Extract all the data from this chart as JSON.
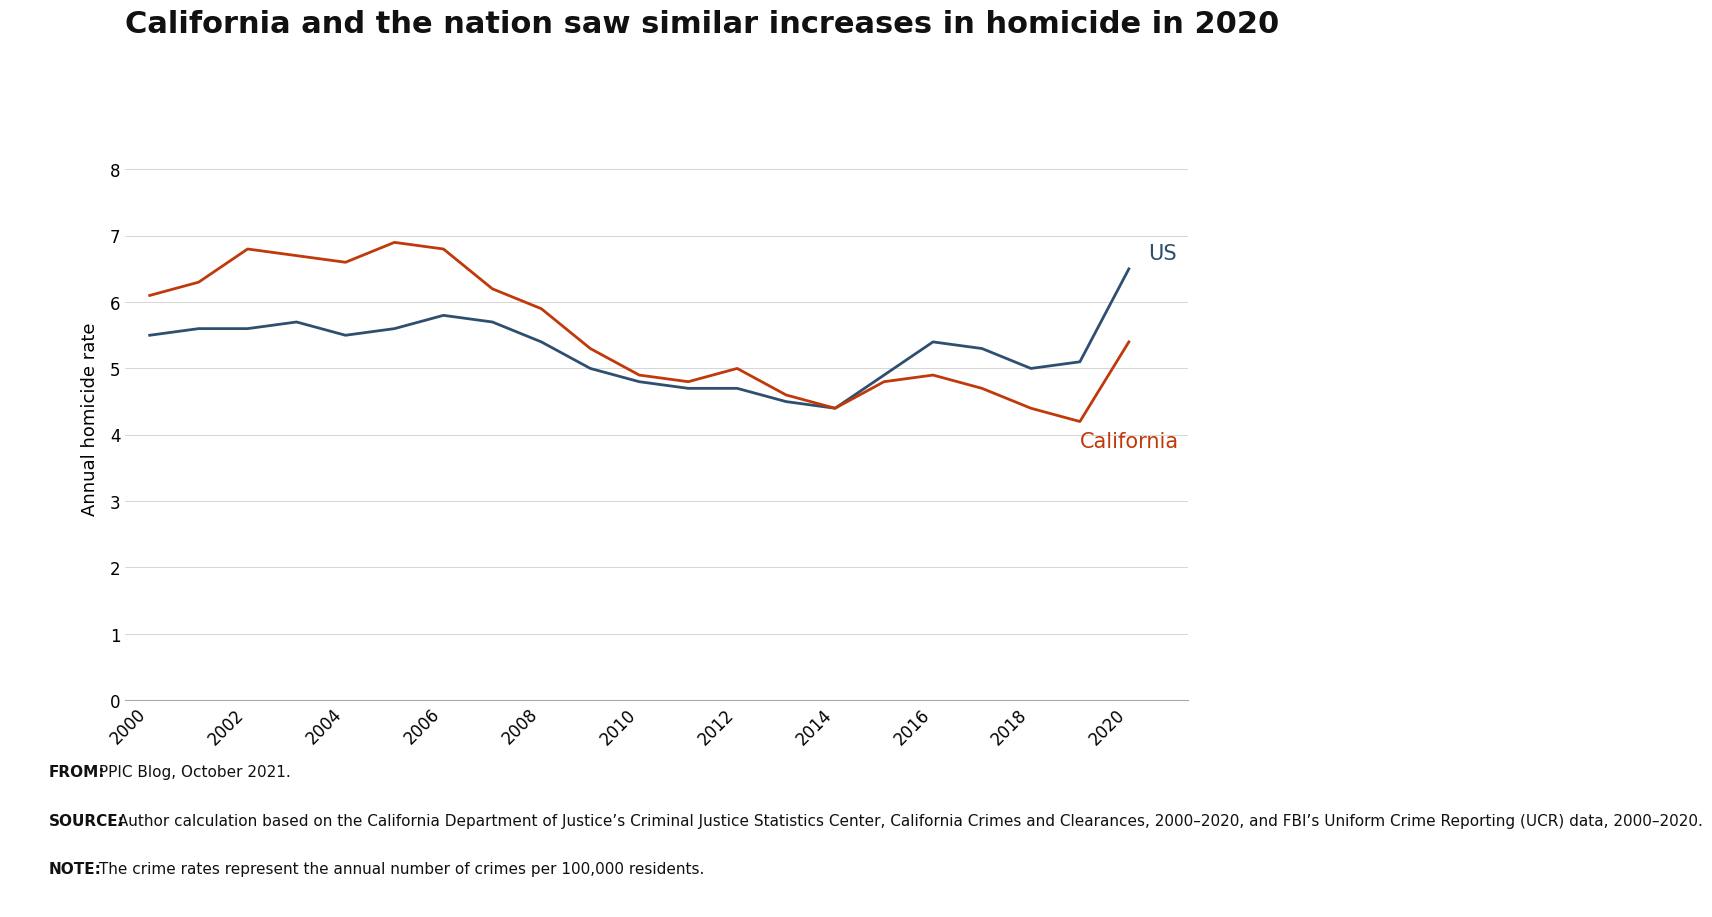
{
  "title": "California and the nation saw similar increases in homicide in 2020",
  "ylabel": "Annual homicide rate",
  "years": [
    2000,
    2001,
    2002,
    2003,
    2004,
    2005,
    2006,
    2007,
    2008,
    2009,
    2010,
    2011,
    2012,
    2013,
    2014,
    2015,
    2016,
    2017,
    2018,
    2019,
    2020
  ],
  "us_values": [
    5.5,
    5.6,
    5.6,
    5.7,
    5.5,
    5.6,
    5.8,
    5.7,
    5.4,
    5.0,
    4.8,
    4.7,
    4.7,
    4.5,
    4.4,
    4.9,
    5.4,
    5.3,
    5.0,
    5.1,
    6.5
  ],
  "ca_values": [
    6.1,
    6.3,
    6.8,
    6.7,
    6.6,
    6.9,
    6.8,
    6.2,
    5.9,
    5.3,
    4.9,
    4.8,
    5.0,
    4.6,
    4.4,
    4.8,
    4.9,
    4.7,
    4.4,
    4.2,
    5.4
  ],
  "us_color": "#2e4f6f",
  "ca_color": "#c0390a",
  "us_label": "US",
  "ca_label": "California",
  "ylim": [
    0,
    8.5
  ],
  "yticks": [
    0,
    1,
    2,
    3,
    4,
    5,
    6,
    7,
    8
  ],
  "xticks": [
    2000,
    2002,
    2004,
    2006,
    2008,
    2010,
    2012,
    2014,
    2016,
    2018,
    2020
  ],
  "background_color": "#ffffff",
  "footer_background": "#e6e6e6",
  "title_fontsize": 22,
  "axis_fontsize": 13,
  "tick_fontsize": 12,
  "label_fontsize": 15,
  "footer_fontsize": 11,
  "line_width": 2.0,
  "footer_from": "FROM:",
  "footer_from_rest": " PPIC Blog, October 2021.",
  "footer_source": "SOURCE:",
  "footer_source_rest": " Author calculation based on the California Department of Justice’s Criminal Justice Statistics Center, California Crimes and Clearances, 2000–2020, and FBI’s Uniform Crime Reporting (UCR) data, 2000–2020.",
  "footer_note": "NOTE:",
  "footer_note_rest": " The crime rates represent the annual number of crimes per 100,000 residents."
}
